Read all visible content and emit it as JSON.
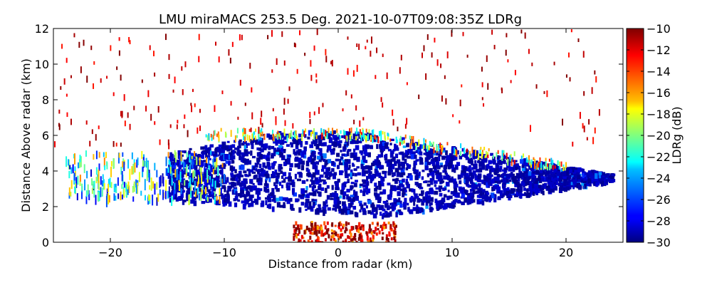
{
  "chart_data": {
    "type": "heatmap",
    "title": "LMU miraMACS 253.5 Deg. 2021-10-07T09:08:35Z  LDRg",
    "xlabel": "Distance from radar (km)",
    "ylabel": "Distance Above radar  (km)",
    "xlim": [
      -25,
      25
    ],
    "ylim": [
      0,
      12
    ],
    "xticks": [
      -20,
      -10,
      0,
      10,
      20
    ],
    "xtick_labels": [
      "−20",
      "−10",
      "0",
      "10",
      "20"
    ],
    "yticks": [
      0,
      2,
      4,
      6,
      8,
      10,
      12
    ],
    "ytick_labels": [
      "0",
      "2",
      "4",
      "6",
      "8",
      "10",
      "12"
    ],
    "colorbar": {
      "label": "LDRg (dB)",
      "range": [
        -30,
        -10
      ],
      "ticks": [
        -30,
        -28,
        -26,
        -24,
        -22,
        -20,
        -18,
        -16,
        -14,
        -12,
        -10
      ],
      "tick_labels": [
        "−30",
        "−28",
        "−26",
        "−24",
        "−22",
        "−20",
        "−18",
        "−16",
        "−14",
        "−12",
        "−10"
      ],
      "colormap": "jet"
    },
    "regions": [
      {
        "name": "main cloud",
        "x": [
          -15,
          24
        ],
        "y": [
          1.5,
          6.3
        ],
        "ldr_db": -29
      },
      {
        "name": "cloud top edge",
        "x": [
          -12,
          20
        ],
        "y": [
          5.8,
          6.6
        ],
        "ldr_db": -18
      },
      {
        "name": "left flank",
        "x": [
          -24,
          -10
        ],
        "y": [
          2.5,
          5.2
        ],
        "ldr_db": -22
      },
      {
        "name": "near-ground clutter",
        "x": [
          -4,
          5
        ],
        "y": [
          0,
          1.2
        ],
        "ldr_db": -12
      },
      {
        "name": "sparse upper echoes",
        "x": [
          -25,
          23
        ],
        "y": [
          5.5,
          12
        ],
        "ldr_db": -10
      }
    ]
  }
}
